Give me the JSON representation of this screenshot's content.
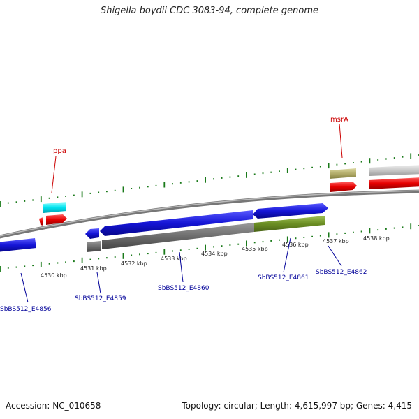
{
  "title": "Shigella boydii CDC 3083-94, complete genome",
  "footer": {
    "accession": "Accession: NC_010658",
    "summary": "Topology: circular; Length: 4,615,997 bp; Genes: 4,415"
  },
  "scale": {
    "ticks": [
      "4530 kbp",
      "4531 kbp",
      "4532 kbp",
      "4533 kbp",
      "4534 kbp",
      "4535 kbp",
      "4536 kbp",
      "4537 kbp",
      "4538 kbp"
    ]
  },
  "top_labels": [
    "ppa",
    "msrA"
  ],
  "bottom_labels": [
    "SbBS512_E4856",
    "SbBS512_E4859",
    "SbBS512_E4860",
    "SbBS512_E4861",
    "SbBS512_E4862"
  ],
  "colors": {
    "red_label": "#cc0000",
    "blue_label": "#000099",
    "tick": "#1a7a1a",
    "cds_blue": "#1515d6",
    "gene_red": "#e60000",
    "cyan": "#00e5f0",
    "olive": "#b3ad6b",
    "gray": "#c8c8c8",
    "dark_gray": "#6e6e6e",
    "green": "#6b8e23"
  }
}
